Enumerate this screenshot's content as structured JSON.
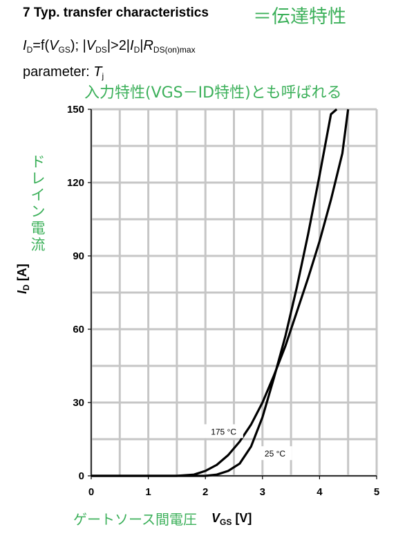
{
  "header": {
    "title": "7 Typ. transfer characteristics",
    "title_jp": "＝伝達特性",
    "formula": {
      "i1": "I",
      "s1": "D",
      "t1": "=f(",
      "i2": "V",
      "s2": "GS",
      "t2": "); |",
      "i3": "V",
      "s3": "DS",
      "t3": "|>2|",
      "i4": "I",
      "s4": "D",
      "t4": "|",
      "i5": "R",
      "s5": "DS(on)max"
    },
    "parameter": {
      "label": "parameter: ",
      "symbol": "T",
      "sub": "j"
    },
    "subtitle_jp": "入力特性(VGS－ID特性)とも呼ばれる"
  },
  "axes": {
    "xlabel_jp": "ゲートソース間電圧",
    "xlabel": {
      "sym": "V",
      "sub": "GS",
      "unit": " [V]"
    },
    "ylabel_jp": "ドレイン電流",
    "ylabel": {
      "sym": "I",
      "sub": "D",
      "unit": " [A]"
    }
  },
  "chart_data": {
    "type": "line",
    "title": "7 Typ. transfer characteristics",
    "xlabel": "VGS [V]",
    "ylabel": "ID [A]",
    "xlim": [
      0,
      5
    ],
    "ylim": [
      0,
      150
    ],
    "xticks": [
      0,
      1,
      2,
      3,
      4,
      5
    ],
    "yticks": [
      0,
      30,
      60,
      90,
      120,
      150
    ],
    "grid": true,
    "series": [
      {
        "name": "175 °C",
        "x": [
          0,
          1.5,
          1.8,
          2.0,
          2.2,
          2.4,
          2.6,
          2.8,
          3.0,
          3.2,
          3.4,
          3.6,
          3.8,
          4.0,
          4.2,
          4.4,
          4.5
        ],
        "y": [
          0,
          0,
          0.5,
          2,
          4.5,
          8.5,
          14,
          21,
          30,
          41,
          53,
          67,
          81,
          96,
          113,
          132,
          150
        ]
      },
      {
        "name": "25 °C",
        "x": [
          0,
          2.0,
          2.2,
          2.4,
          2.6,
          2.8,
          3.0,
          3.2,
          3.4,
          3.6,
          3.8,
          4.0,
          4.2,
          4.3
        ],
        "y": [
          0,
          0,
          0.5,
          2,
          5,
          12,
          24,
          40,
          57,
          77,
          99,
          123,
          148,
          150
        ]
      }
    ],
    "annotations": [
      {
        "text": "175 °C",
        "x": 2.32,
        "y": 18
      },
      {
        "text": "25 °C",
        "x": 3.22,
        "y": 9
      }
    ]
  }
}
